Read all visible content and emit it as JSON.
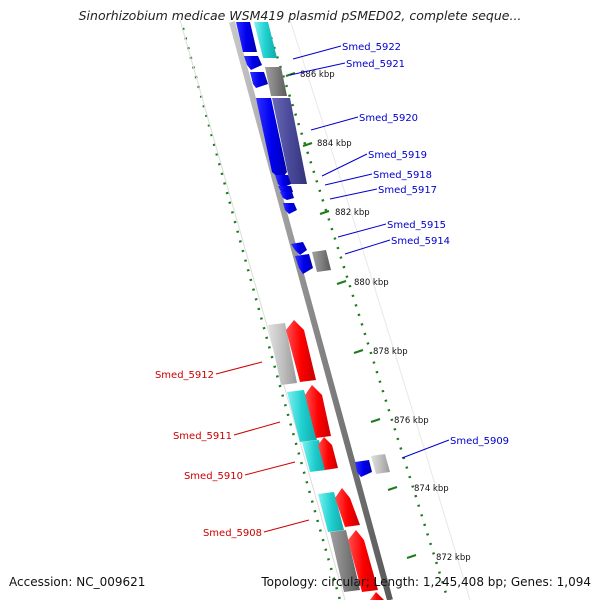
{
  "title": "Sinorhizobium medicae WSM419 plasmid pSMED02, complete seque...",
  "footer": {
    "accession": "Accession: NC_009621",
    "topology": "Topology: circular; Length: 1,245,408 bp; Genes: 1,094"
  },
  "colors": {
    "forward_gene": "#ff0000",
    "reverse_gene": "#0000ff",
    "cyan_feature": "#00cccc",
    "grey_feature": "#808080",
    "light_grey_feature": "#bbbbbb",
    "gc_skew_dots": "#1b7a1b",
    "axis": "#888888"
  },
  "kbp_ticks": [
    {
      "id": "886",
      "label": "886 kbp"
    },
    {
      "id": "884",
      "label": "884 kbp"
    },
    {
      "id": "882",
      "label": "882 kbp"
    },
    {
      "id": "880",
      "label": "880 kbp"
    },
    {
      "id": "878",
      "label": "878 kbp"
    },
    {
      "id": "876",
      "label": "876 kbp"
    },
    {
      "id": "874",
      "label": "874 kbp"
    },
    {
      "id": "872",
      "label": "872 kbp"
    }
  ],
  "gene_labels": [
    {
      "id": "smed5922",
      "label": "Smed_5922",
      "strand": "reverse"
    },
    {
      "id": "smed5921",
      "label": "Smed_5921",
      "strand": "reverse"
    },
    {
      "id": "smed5920",
      "label": "Smed_5920",
      "strand": "reverse"
    },
    {
      "id": "smed5919",
      "label": "Smed_5919",
      "strand": "reverse"
    },
    {
      "id": "smed5918",
      "label": "Smed_5918",
      "strand": "reverse"
    },
    {
      "id": "smed5917",
      "label": "Smed_5917",
      "strand": "reverse"
    },
    {
      "id": "smed5915",
      "label": "Smed_5915",
      "strand": "reverse"
    },
    {
      "id": "smed5914",
      "label": "Smed_5914",
      "strand": "reverse"
    },
    {
      "id": "smed5909",
      "label": "Smed_5909",
      "strand": "reverse"
    },
    {
      "id": "smed5912",
      "label": "Smed_5912",
      "strand": "forward"
    },
    {
      "id": "smed5911",
      "label": "Smed_5911",
      "strand": "forward"
    },
    {
      "id": "smed5910",
      "label": "Smed_5910",
      "strand": "forward"
    },
    {
      "id": "smed5908",
      "label": "Smed_5908",
      "strand": "forward"
    }
  ]
}
